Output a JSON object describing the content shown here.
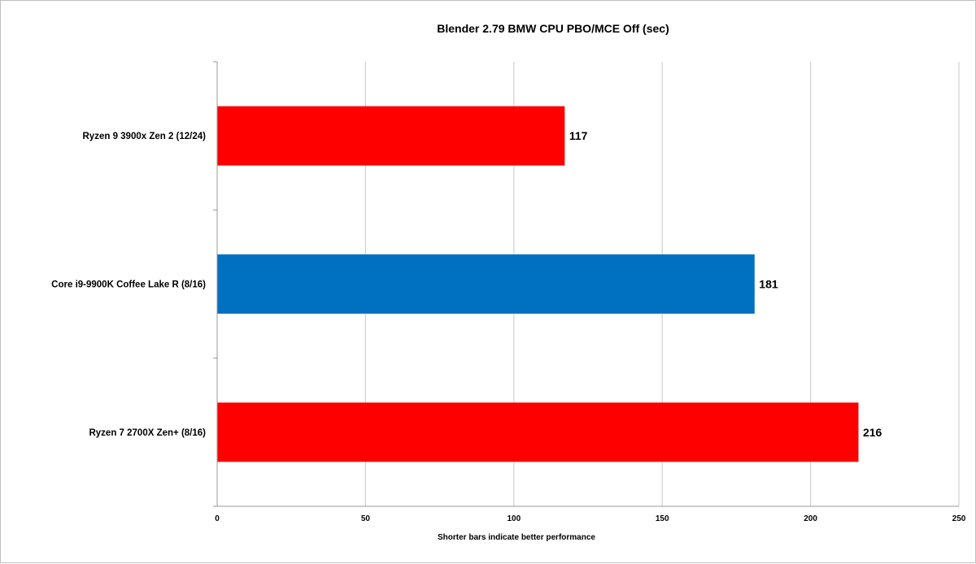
{
  "chart_data": {
    "type": "bar",
    "orientation": "horizontal",
    "title": "Blender 2.79 BMW CPU PBO/MCE Off (sec)",
    "xlabel": "Shorter  bars indicate better performance",
    "ylabel": "",
    "xlim": [
      0,
      250
    ],
    "x_ticks": [
      0,
      50,
      100,
      150,
      200,
      250
    ],
    "categories": [
      "Ryzen 9 3900x Zen 2 (12/24)",
      "Core i9-9900K Coffee Lake R (8/16)",
      "Ryzen 7 2700X Zen+ (8/16)"
    ],
    "values": [
      117,
      181,
      216
    ],
    "data_labels": [
      "117",
      "181",
      "216"
    ],
    "bar_colors": [
      "#ff0000",
      "#0070c0",
      "#ff0000"
    ],
    "grid": true,
    "legend": "none"
  }
}
